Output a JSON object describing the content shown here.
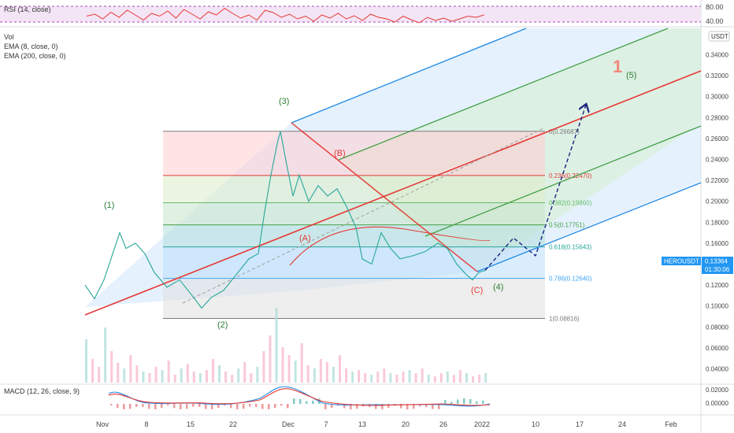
{
  "chart_data": {
    "type": "line",
    "symbol": "HEROUSDT",
    "quote": "USDT",
    "price_label": "0.13364",
    "countdown": "01:30:06",
    "price_color": "#2196f3",
    "volume_color": "#f8bbd0",
    "rsi": {
      "label": "RSI (14, close)",
      "ticks": [
        "80.00",
        "40.00"
      ],
      "line_color": "#e53935",
      "band_color": "#e1bee7",
      "values": [
        55,
        60,
        48,
        65,
        52,
        70,
        58,
        45,
        62,
        55,
        68,
        50,
        72,
        60,
        48,
        66,
        58,
        75,
        62,
        50,
        58,
        45,
        70,
        64,
        52,
        60,
        48,
        55,
        42,
        58,
        50,
        62,
        48,
        56,
        44,
        60,
        52,
        48,
        40,
        55,
        46,
        38,
        52,
        44,
        50,
        42,
        48,
        55,
        52,
        58
      ]
    },
    "indicators": [
      "Vol",
      "EMA (8, close, 0)",
      "EMA (200, close, 0)"
    ],
    "macd": {
      "label": "MACD (12, 26, close, 9)",
      "tick": "0.00000",
      "macd_color": "#1e88e5",
      "signal_color": "#e53935",
      "hist_color": "#ef9a9a"
    },
    "x_ticks": [
      "Nov",
      "8",
      "15",
      "22",
      "Dec",
      "7",
      "13",
      "20",
      "26",
      "2022",
      "10",
      "17",
      "24",
      "Feb"
    ],
    "y_ticks": [
      "0.34000",
      "0.32000",
      "0.30000",
      "0.28000",
      "0.26000",
      "0.24000",
      "0.22000",
      "0.20000",
      "0.18000",
      "0.16000",
      "0.14000",
      "0.12000",
      "0.10000",
      "0.08000",
      "0.06000",
      "0.04000",
      "0.02000"
    ],
    "fib_levels": [
      {
        "label": "0(0.26687)",
        "value": 0.26687,
        "color": "#7a7a7a"
      },
      {
        "label": "0.236(0.22470)",
        "value": 0.2247,
        "color": "#e53935"
      },
      {
        "label": "0.382(0.19860)",
        "value": 0.1986,
        "color": "#66bb6a"
      },
      {
        "label": "0.5(0.17751)",
        "value": 0.17751,
        "color": "#43a047"
      },
      {
        "label": "0.618(0.15643)",
        "value": 0.15643,
        "color": "#26a69a"
      },
      {
        "label": "0.786(0.12640)",
        "value": 0.1264,
        "color": "#42a5f5"
      },
      {
        "label": "1(0.08816)",
        "value": 0.08816,
        "color": "#7a7a7a"
      }
    ],
    "wave_labels": [
      {
        "text": "(1)",
        "color": "#2e7d32"
      },
      {
        "text": "(2)",
        "color": "#2e7d32"
      },
      {
        "text": "(3)",
        "color": "#2e7d32"
      },
      {
        "text": "(4)",
        "color": "#2e7d32"
      },
      {
        "text": "(5)",
        "color": "#2e7d32"
      },
      {
        "text": "(A)",
        "color": "#e53935"
      },
      {
        "text": "(B)",
        "color": "#e53935"
      },
      {
        "text": "(C)",
        "color": "#e53935"
      },
      {
        "text": "1",
        "color": "#ef8a7a"
      }
    ],
    "price_series": [
      {
        "day": 0,
        "price": 0.12
      },
      {
        "day": 1.5,
        "price": 0.107
      },
      {
        "day": 3,
        "price": 0.125
      },
      {
        "day": 4.5,
        "price": 0.152
      },
      {
        "day": 5.5,
        "price": 0.17
      },
      {
        "day": 6.5,
        "price": 0.155
      },
      {
        "day": 8,
        "price": 0.16
      },
      {
        "day": 9.5,
        "price": 0.15
      },
      {
        "day": 11,
        "price": 0.132
      },
      {
        "day": 13,
        "price": 0.118
      },
      {
        "day": 15,
        "price": 0.125
      },
      {
        "day": 17,
        "price": 0.11
      },
      {
        "day": 18.5,
        "price": 0.098
      },
      {
        "day": 20,
        "price": 0.108
      },
      {
        "day": 22,
        "price": 0.115
      },
      {
        "day": 24,
        "price": 0.13
      },
      {
        "day": 26,
        "price": 0.145
      },
      {
        "day": 27.5,
        "price": 0.15
      },
      {
        "day": 28.5,
        "price": 0.19
      },
      {
        "day": 29.5,
        "price": 0.225
      },
      {
        "day": 30.5,
        "price": 0.255
      },
      {
        "day": 31,
        "price": 0.267
      },
      {
        "day": 32,
        "price": 0.235
      },
      {
        "day": 33,
        "price": 0.205
      },
      {
        "day": 34,
        "price": 0.225
      },
      {
        "day": 35.5,
        "price": 0.2
      },
      {
        "day": 37,
        "price": 0.215
      },
      {
        "day": 38.5,
        "price": 0.205
      },
      {
        "day": 40,
        "price": 0.212
      },
      {
        "day": 41.5,
        "price": 0.195
      },
      {
        "day": 43,
        "price": 0.175
      },
      {
        "day": 44,
        "price": 0.145
      },
      {
        "day": 45.5,
        "price": 0.14
      },
      {
        "day": 47,
        "price": 0.17
      },
      {
        "day": 48.5,
        "price": 0.155
      },
      {
        "day": 50,
        "price": 0.145
      },
      {
        "day": 52,
        "price": 0.148
      },
      {
        "day": 54,
        "price": 0.152
      },
      {
        "day": 56,
        "price": 0.16
      },
      {
        "day": 57.5,
        "price": 0.155
      },
      {
        "day": 59,
        "price": 0.14
      },
      {
        "day": 60.5,
        "price": 0.13
      },
      {
        "day": 61.5,
        "price": 0.125
      },
      {
        "day": 62.5,
        "price": 0.132
      },
      {
        "day": 63.5,
        "price": 0.134
      }
    ],
    "projection": [
      {
        "day": 63.5,
        "price": 0.134
      },
      {
        "day": 68,
        "price": 0.165
      },
      {
        "day": 71.5,
        "price": 0.148
      },
      {
        "day": 79.5,
        "price": 0.292
      }
    ]
  }
}
